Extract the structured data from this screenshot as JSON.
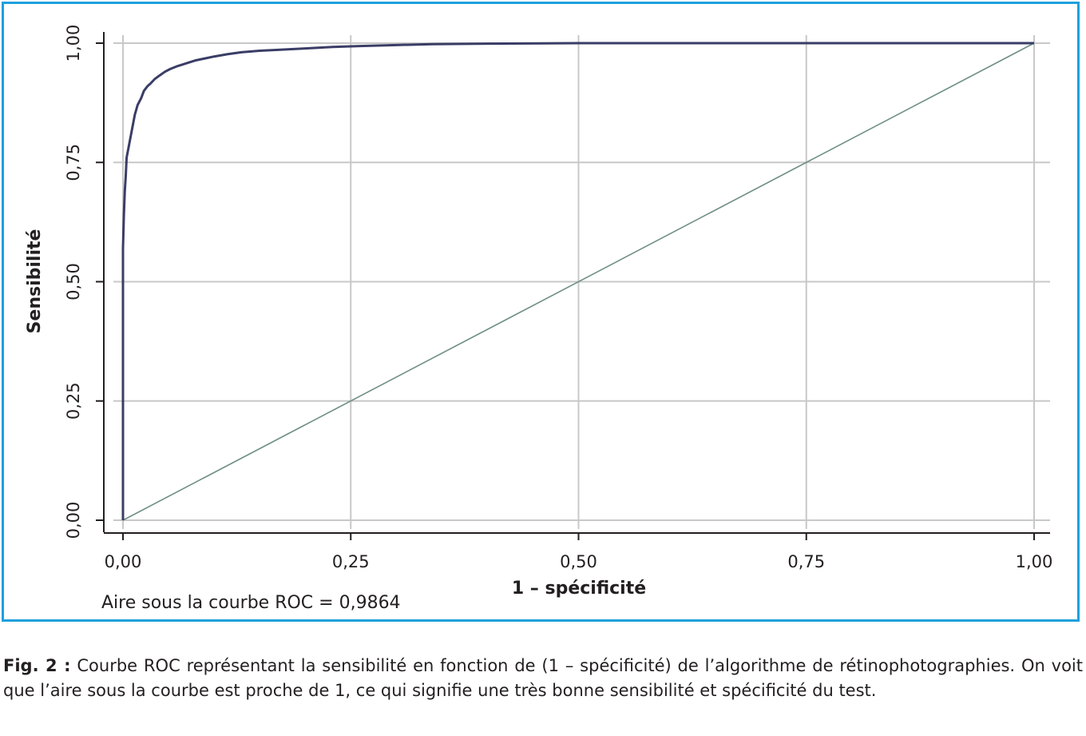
{
  "chart_data": {
    "type": "line",
    "xlabel": "1 – spécificité",
    "ylabel": "Sensibilité",
    "xlim": [
      0,
      1
    ],
    "ylim": [
      0,
      1
    ],
    "x_ticks": [
      "0,00",
      "0,25",
      "0,50",
      "0,75",
      "1,00"
    ],
    "y_ticks": [
      "0,00",
      "0,25",
      "0,50",
      "0,75",
      "1,00"
    ],
    "grid": true,
    "annotation": "Aire sous la courbe ROC = 0,9864",
    "colors": {
      "roc": "#3a3d66",
      "reference": "#6e8e86",
      "grid": "#c8c8c8",
      "frame": "#1ea0dc"
    },
    "series": [
      {
        "x": [
          0.0,
          0.0,
          0.001,
          0.002,
          0.003,
          0.004,
          0.006,
          0.008,
          0.01,
          0.013,
          0.016,
          0.02,
          0.023,
          0.027,
          0.03,
          0.035,
          0.04,
          0.046,
          0.052,
          0.06,
          0.07,
          0.08,
          0.09,
          0.1,
          0.115,
          0.13,
          0.15,
          0.17,
          0.2,
          0.23,
          0.26,
          0.3,
          0.34,
          0.4,
          0.5,
          0.6,
          0.8,
          1.0
        ],
        "y": [
          0.0,
          0.57,
          0.64,
          0.69,
          0.72,
          0.76,
          0.78,
          0.8,
          0.82,
          0.85,
          0.87,
          0.885,
          0.9,
          0.91,
          0.915,
          0.925,
          0.932,
          0.94,
          0.946,
          0.952,
          0.958,
          0.964,
          0.968,
          0.972,
          0.977,
          0.981,
          0.984,
          0.986,
          0.989,
          0.992,
          0.994,
          0.996,
          0.998,
          0.999,
          1.0,
          1.0,
          1.0,
          1.0
        ]
      },
      {
        "x": [
          0,
          1
        ],
        "y": [
          0,
          1
        ]
      }
    ]
  },
  "caption": {
    "label": "Fig. 2 :",
    "text": "Courbe ROC représentant la sensibilité en fonction de (1 – spécificité) de l’algorithme de rétinophotographies. On voit que l’aire sous la courbe est proche de 1, ce qui signifie une très bonne sensibilité et spécificité du test."
  }
}
